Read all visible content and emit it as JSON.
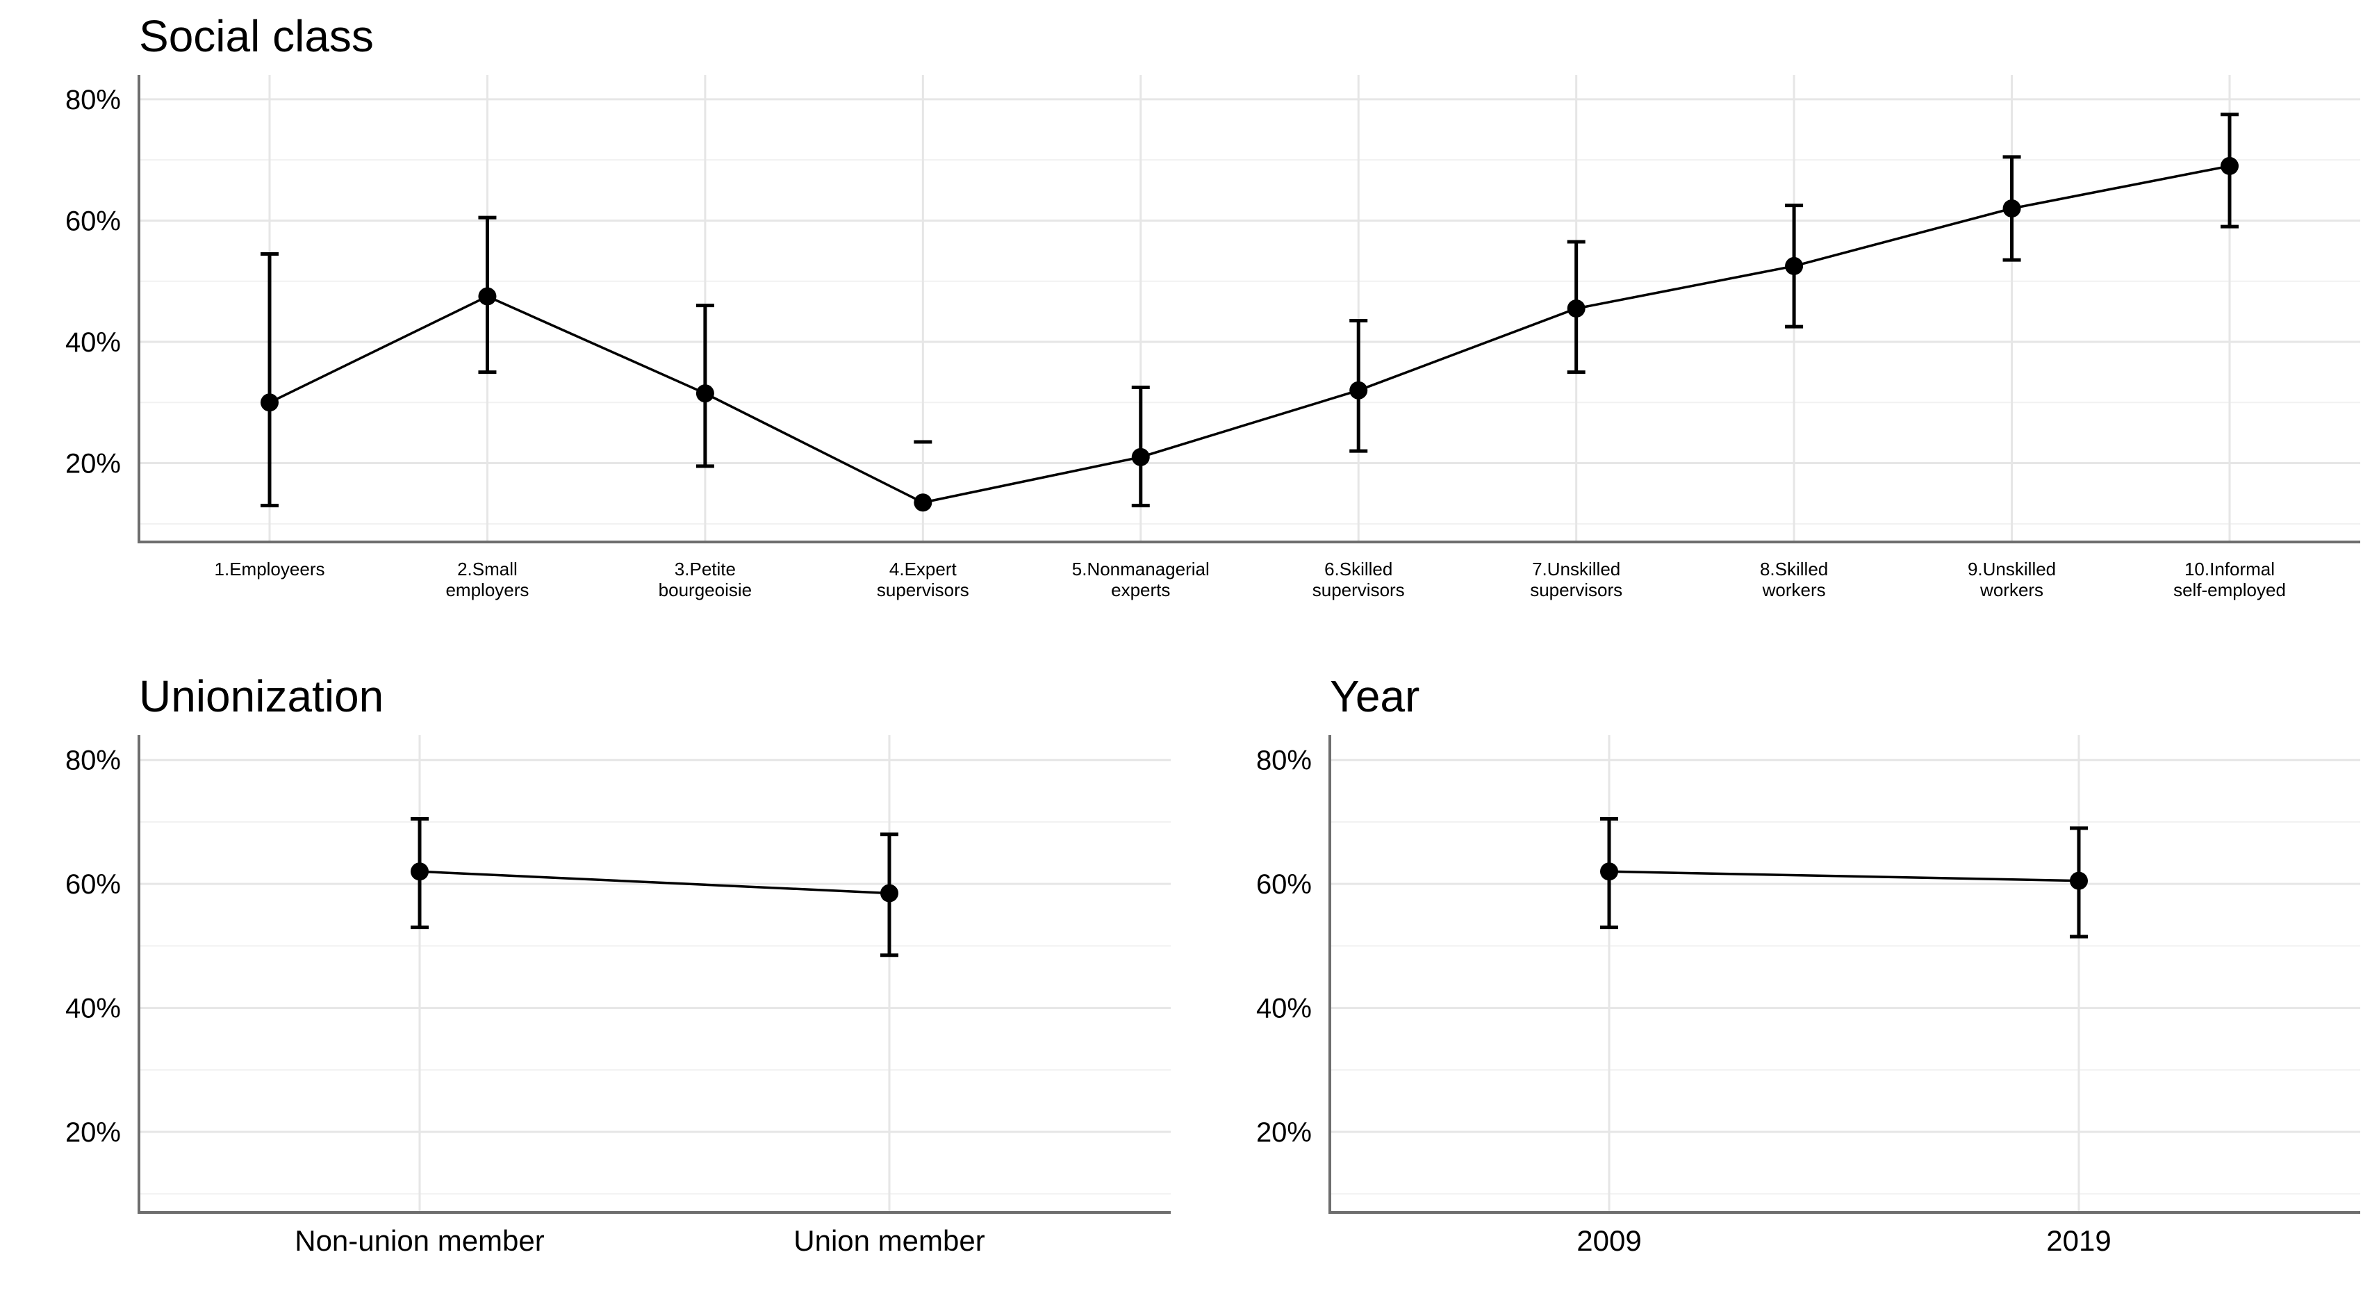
{
  "chart_data": [
    {
      "id": "social-class",
      "type": "line",
      "title": "Social class",
      "xlabel": "",
      "ylabel": "",
      "ylim": [
        7,
        84
      ],
      "yticks": [
        "20%",
        "40%",
        "60%",
        "80%"
      ],
      "ytick_values": [
        20,
        40,
        60,
        80
      ],
      "grid": true,
      "categories": [
        [
          "1.Employeers"
        ],
        [
          "2.Small",
          "employers"
        ],
        [
          "3.Petite",
          "bourgeoisie"
        ],
        [
          "4.Expert",
          "supervisors"
        ],
        [
          "5.Nonmanagerial",
          "experts"
        ],
        [
          "6.Skilled",
          "supervisors"
        ],
        [
          "7.Unskilled",
          "supervisors"
        ],
        [
          "8.Skilled",
          "workers"
        ],
        [
          "9.Unskilled",
          "workers"
        ],
        [
          "10.Informal",
          "self-employed"
        ]
      ],
      "values": [
        30,
        47.5,
        31.5,
        13.5,
        21,
        32,
        45.5,
        52.5,
        62,
        69
      ],
      "lower": [
        13,
        35,
        19.5,
        null,
        13,
        22,
        35,
        42.5,
        53.5,
        59
      ],
      "upper": [
        54.5,
        60.5,
        46,
        23.5,
        32.5,
        43.5,
        56.5,
        62.5,
        70.5,
        77.5
      ]
    },
    {
      "id": "unionization",
      "type": "line",
      "title": "Unionization",
      "xlabel": "",
      "ylabel": "",
      "ylim": [
        7,
        84
      ],
      "yticks": [
        "20%",
        "40%",
        "60%",
        "80%"
      ],
      "ytick_values": [
        20,
        40,
        60,
        80
      ],
      "grid": true,
      "categories": [
        [
          "Non-union member"
        ],
        [
          "Union member"
        ]
      ],
      "values": [
        62,
        58.5
      ],
      "lower": [
        53,
        48.5
      ],
      "upper": [
        70.5,
        68
      ]
    },
    {
      "id": "year",
      "type": "line",
      "title": "Year",
      "xlabel": "",
      "ylabel": "",
      "ylim": [
        7,
        84
      ],
      "yticks": [
        "20%",
        "40%",
        "60%",
        "80%"
      ],
      "ytick_values": [
        20,
        40,
        60,
        80
      ],
      "grid": true,
      "categories": [
        [
          "2009"
        ],
        [
          "2019"
        ]
      ],
      "values": [
        62,
        60.5
      ],
      "lower": [
        53,
        51.5
      ],
      "upper": [
        70.5,
        69
      ]
    }
  ]
}
